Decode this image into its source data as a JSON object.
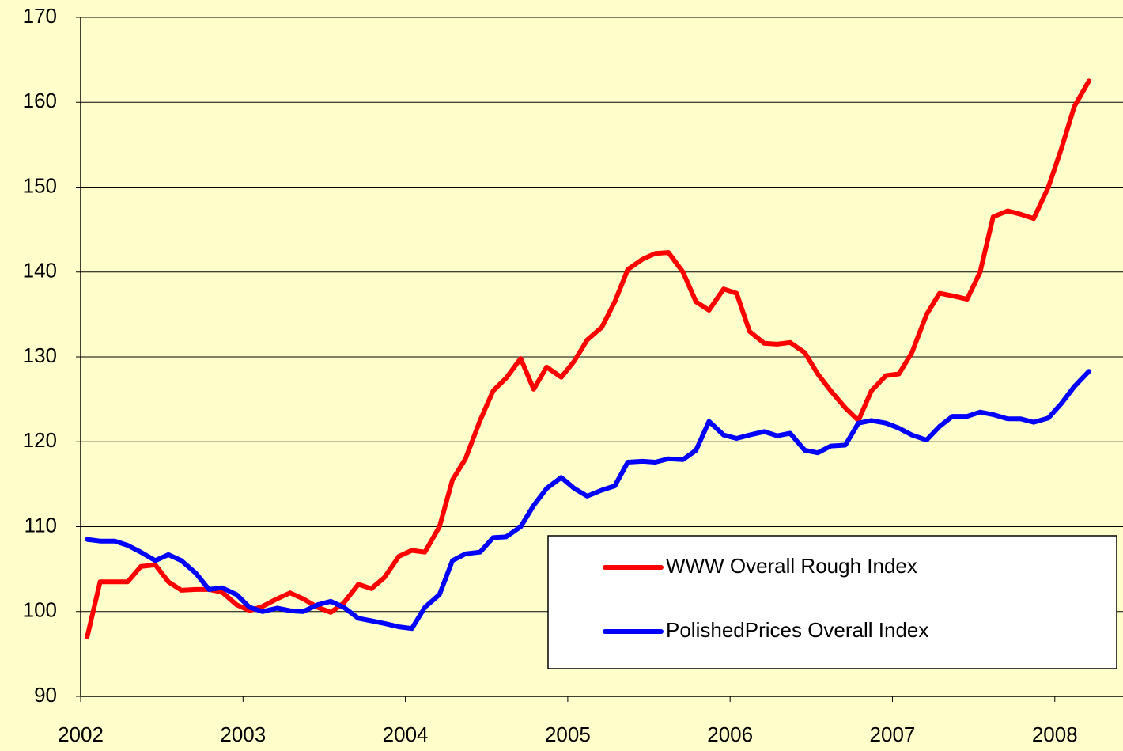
{
  "chart_data": {
    "type": "line",
    "xlim": [
      2002,
      2008.42
    ],
    "xticks": [
      2002,
      2003,
      2004,
      2005,
      2006,
      2007,
      2008
    ],
    "ylim": [
      90,
      170
    ],
    "yticks": [
      90,
      100,
      110,
      120,
      130,
      140,
      150,
      160,
      170
    ],
    "grid": true,
    "legend": "lower right",
    "x": [
      2002.04,
      2002.12,
      2002.21,
      2002.29,
      2002.37,
      2002.46,
      2002.54,
      2002.62,
      2002.71,
      2002.79,
      2002.87,
      2002.96,
      2003.04,
      2003.12,
      2003.21,
      2003.29,
      2003.37,
      2003.46,
      2003.54,
      2003.62,
      2003.71,
      2003.79,
      2003.87,
      2003.96,
      2004.04,
      2004.12,
      2004.21,
      2004.29,
      2004.37,
      2004.46,
      2004.54,
      2004.62,
      2004.71,
      2004.79,
      2004.87,
      2004.96,
      2005.04,
      2005.12,
      2005.21,
      2005.29,
      2005.37,
      2005.46,
      2005.54,
      2005.62,
      2005.71,
      2005.79,
      2005.87,
      2005.96,
      2006.04,
      2006.12,
      2006.21,
      2006.29,
      2006.37,
      2006.46,
      2006.54,
      2006.62,
      2006.71,
      2006.79,
      2006.87,
      2006.96,
      2007.04,
      2007.12,
      2007.21,
      2007.29,
      2007.37,
      2007.46,
      2007.54,
      2007.62,
      2007.71,
      2007.79,
      2007.87,
      2007.96,
      2008.04,
      2008.12,
      2008.21
    ],
    "series": [
      {
        "name": "WWW Overall Rough Index",
        "color": "#ff0000",
        "values": [
          97,
          103.5,
          103.5,
          103.5,
          105.3,
          105.5,
          103.5,
          102.5,
          102.6,
          102.6,
          102.3,
          100.8,
          100.1,
          100.6,
          101.5,
          102.2,
          101.5,
          100.5,
          99.9,
          101,
          103.2,
          102.7,
          104,
          106.5,
          107.2,
          107,
          110,
          115.5,
          118,
          122.5,
          126,
          127.5,
          129.8,
          126.2,
          128.8,
          127.6,
          129.5,
          132,
          133.5,
          136.5,
          140.3,
          141.5,
          142.2,
          142.3,
          140,
          136.5,
          135.5,
          138,
          137.5,
          133,
          131.6,
          131.5,
          131.7,
          130.5,
          128,
          126,
          124,
          122.5,
          126,
          127.8,
          128,
          130.5,
          135,
          137.5,
          137.2,
          136.8,
          140,
          146.5,
          147.2,
          146.8,
          146.3,
          150,
          154.5,
          159.5,
          162.5
        ]
      },
      {
        "name": "PolishedPrices Overall Index",
        "color": "#0000ff",
        "values": [
          108.5,
          108.3,
          108.3,
          107.8,
          107,
          106,
          106.7,
          106,
          104.5,
          102.6,
          102.8,
          102,
          100.5,
          100,
          100.4,
          100.1,
          100,
          100.8,
          101.2,
          100.5,
          99.2,
          98.9,
          98.6,
          98.2,
          98,
          100.5,
          102,
          106,
          106.8,
          107,
          108.7,
          108.8,
          110,
          112.5,
          114.5,
          115.8,
          114.5,
          113.6,
          114.3,
          114.8,
          117.6,
          117.7,
          117.6,
          118,
          117.9,
          119,
          122.4,
          120.8,
          120.4,
          120.8,
          121.2,
          120.7,
          121,
          119,
          118.7,
          119.5,
          119.6,
          122.2,
          122.5,
          122.2,
          121.6,
          120.8,
          120.2,
          121.8,
          123,
          123,
          123.5,
          123.2,
          122.7,
          122.7,
          122.3,
          122.8,
          124.5,
          126.5,
          128.3
        ]
      }
    ]
  }
}
